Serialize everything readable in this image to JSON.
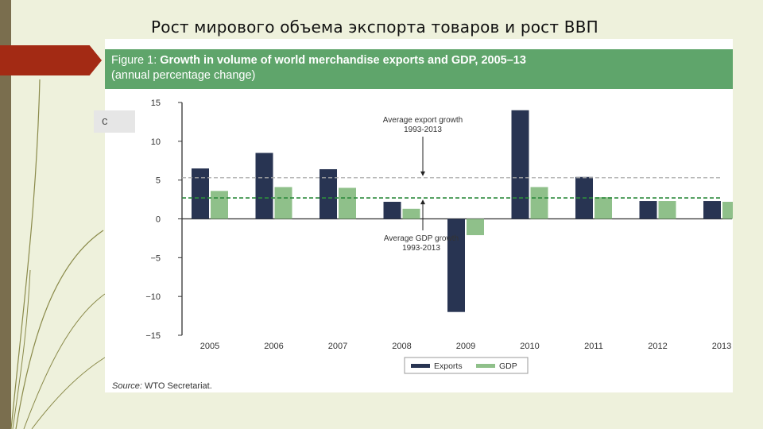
{
  "slide": {
    "title": "Рост мирового объема экспорта товаров и рост ВВП",
    "side_tab_glyph": "c"
  },
  "figure": {
    "label": "Figure 1:",
    "title_bold": "Growth in volume of world merchandise exports and GDP, 2005–13",
    "subtitle": "(annual percentage change)",
    "source_label": "Source:",
    "source_text": "WTO Secretariat."
  },
  "colors": {
    "exports": "#283452",
    "gdp": "#8fc08a",
    "header": "#5fa56b",
    "avg_export_line": "#aaaaaa",
    "avg_gdp_line": "#2e8b3e"
  },
  "chart_data": {
    "type": "bar",
    "categories": [
      "2005",
      "2006",
      "2007",
      "2008",
      "2009",
      "2010",
      "2011",
      "2012",
      "2013"
    ],
    "series": [
      {
        "name": "Exports",
        "values": [
          6.5,
          8.5,
          6.4,
          2.2,
          -12.0,
          14.0,
          5.4,
          2.3,
          2.3
        ]
      },
      {
        "name": "GDP",
        "values": [
          3.6,
          4.1,
          4.0,
          1.3,
          -2.1,
          4.1,
          2.8,
          2.3,
          2.2
        ]
      }
    ],
    "ylim": [
      -15,
      15
    ],
    "yticks": [
      15,
      10,
      5,
      0,
      -5,
      -10,
      -15
    ],
    "ytick_labels": [
      "15",
      "10",
      "5",
      "0",
      "−5",
      "−10",
      "−15"
    ],
    "reference_lines": [
      {
        "value": 5.3,
        "label_lines": [
          "Average export growth",
          "1993-2013"
        ],
        "style": "dashed-grey"
      },
      {
        "value": 2.7,
        "label_lines": [
          "Average GDP growth",
          "1993-2013"
        ],
        "style": "dashed-green"
      }
    ],
    "legend_position": "bottom-center",
    "xlabel": "",
    "ylabel": ""
  }
}
